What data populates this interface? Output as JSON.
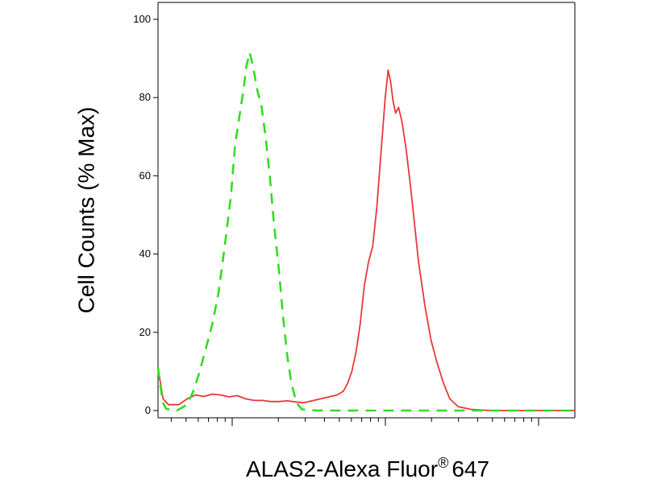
{
  "chart_data": {
    "type": "line",
    "title": "",
    "xlabel": "ALAS2-Alexa Fluor",
    "xlabel_superscript": "®",
    "xlabel_suffix": "647",
    "ylabel": "Cell Counts (% Max)",
    "x_scale": "log",
    "xlim": [
      0,
      1.0
    ],
    "ylim": [
      0,
      100
    ],
    "yticks": [
      0,
      20,
      40,
      60,
      80,
      100
    ],
    "ytick_labels": [
      "0",
      "20",
      "40",
      "60",
      "80",
      "100"
    ],
    "grid": false,
    "legend": "none",
    "series": [
      {
        "color": "#e8383b",
        "dash": "solid",
        "points": [
          [
            0.0,
            10.5
          ],
          [
            0.006,
            7
          ],
          [
            0.012,
            3
          ],
          [
            0.025,
            1.5
          ],
          [
            0.05,
            1.5
          ],
          [
            0.07,
            3
          ],
          [
            0.09,
            4
          ],
          [
            0.11,
            3.6
          ],
          [
            0.13,
            4.2
          ],
          [
            0.15,
            4
          ],
          [
            0.17,
            3.5
          ],
          [
            0.19,
            3.8
          ],
          [
            0.21,
            3
          ],
          [
            0.23,
            2.6
          ],
          [
            0.25,
            2.6
          ],
          [
            0.27,
            2.3
          ],
          [
            0.29,
            2.3
          ],
          [
            0.31,
            2.5
          ],
          [
            0.33,
            2.2
          ],
          [
            0.35,
            2.0
          ],
          [
            0.37,
            2.5
          ],
          [
            0.39,
            3
          ],
          [
            0.41,
            3.5
          ],
          [
            0.43,
            4.0
          ],
          [
            0.445,
            5
          ],
          [
            0.455,
            7
          ],
          [
            0.465,
            10
          ],
          [
            0.475,
            15
          ],
          [
            0.485,
            22
          ],
          [
            0.495,
            32
          ],
          [
            0.505,
            38
          ],
          [
            0.515,
            42
          ],
          [
            0.525,
            52
          ],
          [
            0.535,
            66
          ],
          [
            0.545,
            80
          ],
          [
            0.552,
            87
          ],
          [
            0.558,
            84
          ],
          [
            0.564,
            79
          ],
          [
            0.57,
            76
          ],
          [
            0.577,
            77.5
          ],
          [
            0.585,
            74
          ],
          [
            0.595,
            67
          ],
          [
            0.605,
            58
          ],
          [
            0.615,
            48
          ],
          [
            0.625,
            38
          ],
          [
            0.64,
            27
          ],
          [
            0.655,
            18
          ],
          [
            0.67,
            12
          ],
          [
            0.685,
            7
          ],
          [
            0.7,
            3
          ],
          [
            0.72,
            1
          ],
          [
            0.75,
            0.3
          ],
          [
            0.8,
            0
          ],
          [
            0.9,
            0
          ],
          [
            1.0,
            0
          ]
        ]
      },
      {
        "color": "#33dd22",
        "dash": "dashed",
        "points": [
          [
            0.0,
            11
          ],
          [
            0.006,
            6
          ],
          [
            0.012,
            2
          ],
          [
            0.02,
            0.4
          ],
          [
            0.045,
            0
          ],
          [
            0.07,
            1.5
          ],
          [
            0.085,
            5
          ],
          [
            0.1,
            10
          ],
          [
            0.115,
            16
          ],
          [
            0.13,
            22
          ],
          [
            0.145,
            30
          ],
          [
            0.16,
            42
          ],
          [
            0.175,
            55
          ],
          [
            0.185,
            68
          ],
          [
            0.195,
            75
          ],
          [
            0.205,
            82
          ],
          [
            0.212,
            88
          ],
          [
            0.22,
            91.5
          ],
          [
            0.228,
            88
          ],
          [
            0.238,
            82
          ],
          [
            0.248,
            78
          ],
          [
            0.258,
            70
          ],
          [
            0.268,
            60
          ],
          [
            0.278,
            48
          ],
          [
            0.29,
            36
          ],
          [
            0.3,
            24
          ],
          [
            0.31,
            14
          ],
          [
            0.32,
            7
          ],
          [
            0.332,
            2
          ],
          [
            0.345,
            0.3
          ],
          [
            0.38,
            0
          ],
          [
            0.45,
            0
          ],
          [
            0.55,
            0
          ],
          [
            0.65,
            0
          ],
          [
            0.75,
            0
          ],
          [
            0.85,
            0
          ],
          [
            1.0,
            0
          ]
        ]
      }
    ]
  }
}
